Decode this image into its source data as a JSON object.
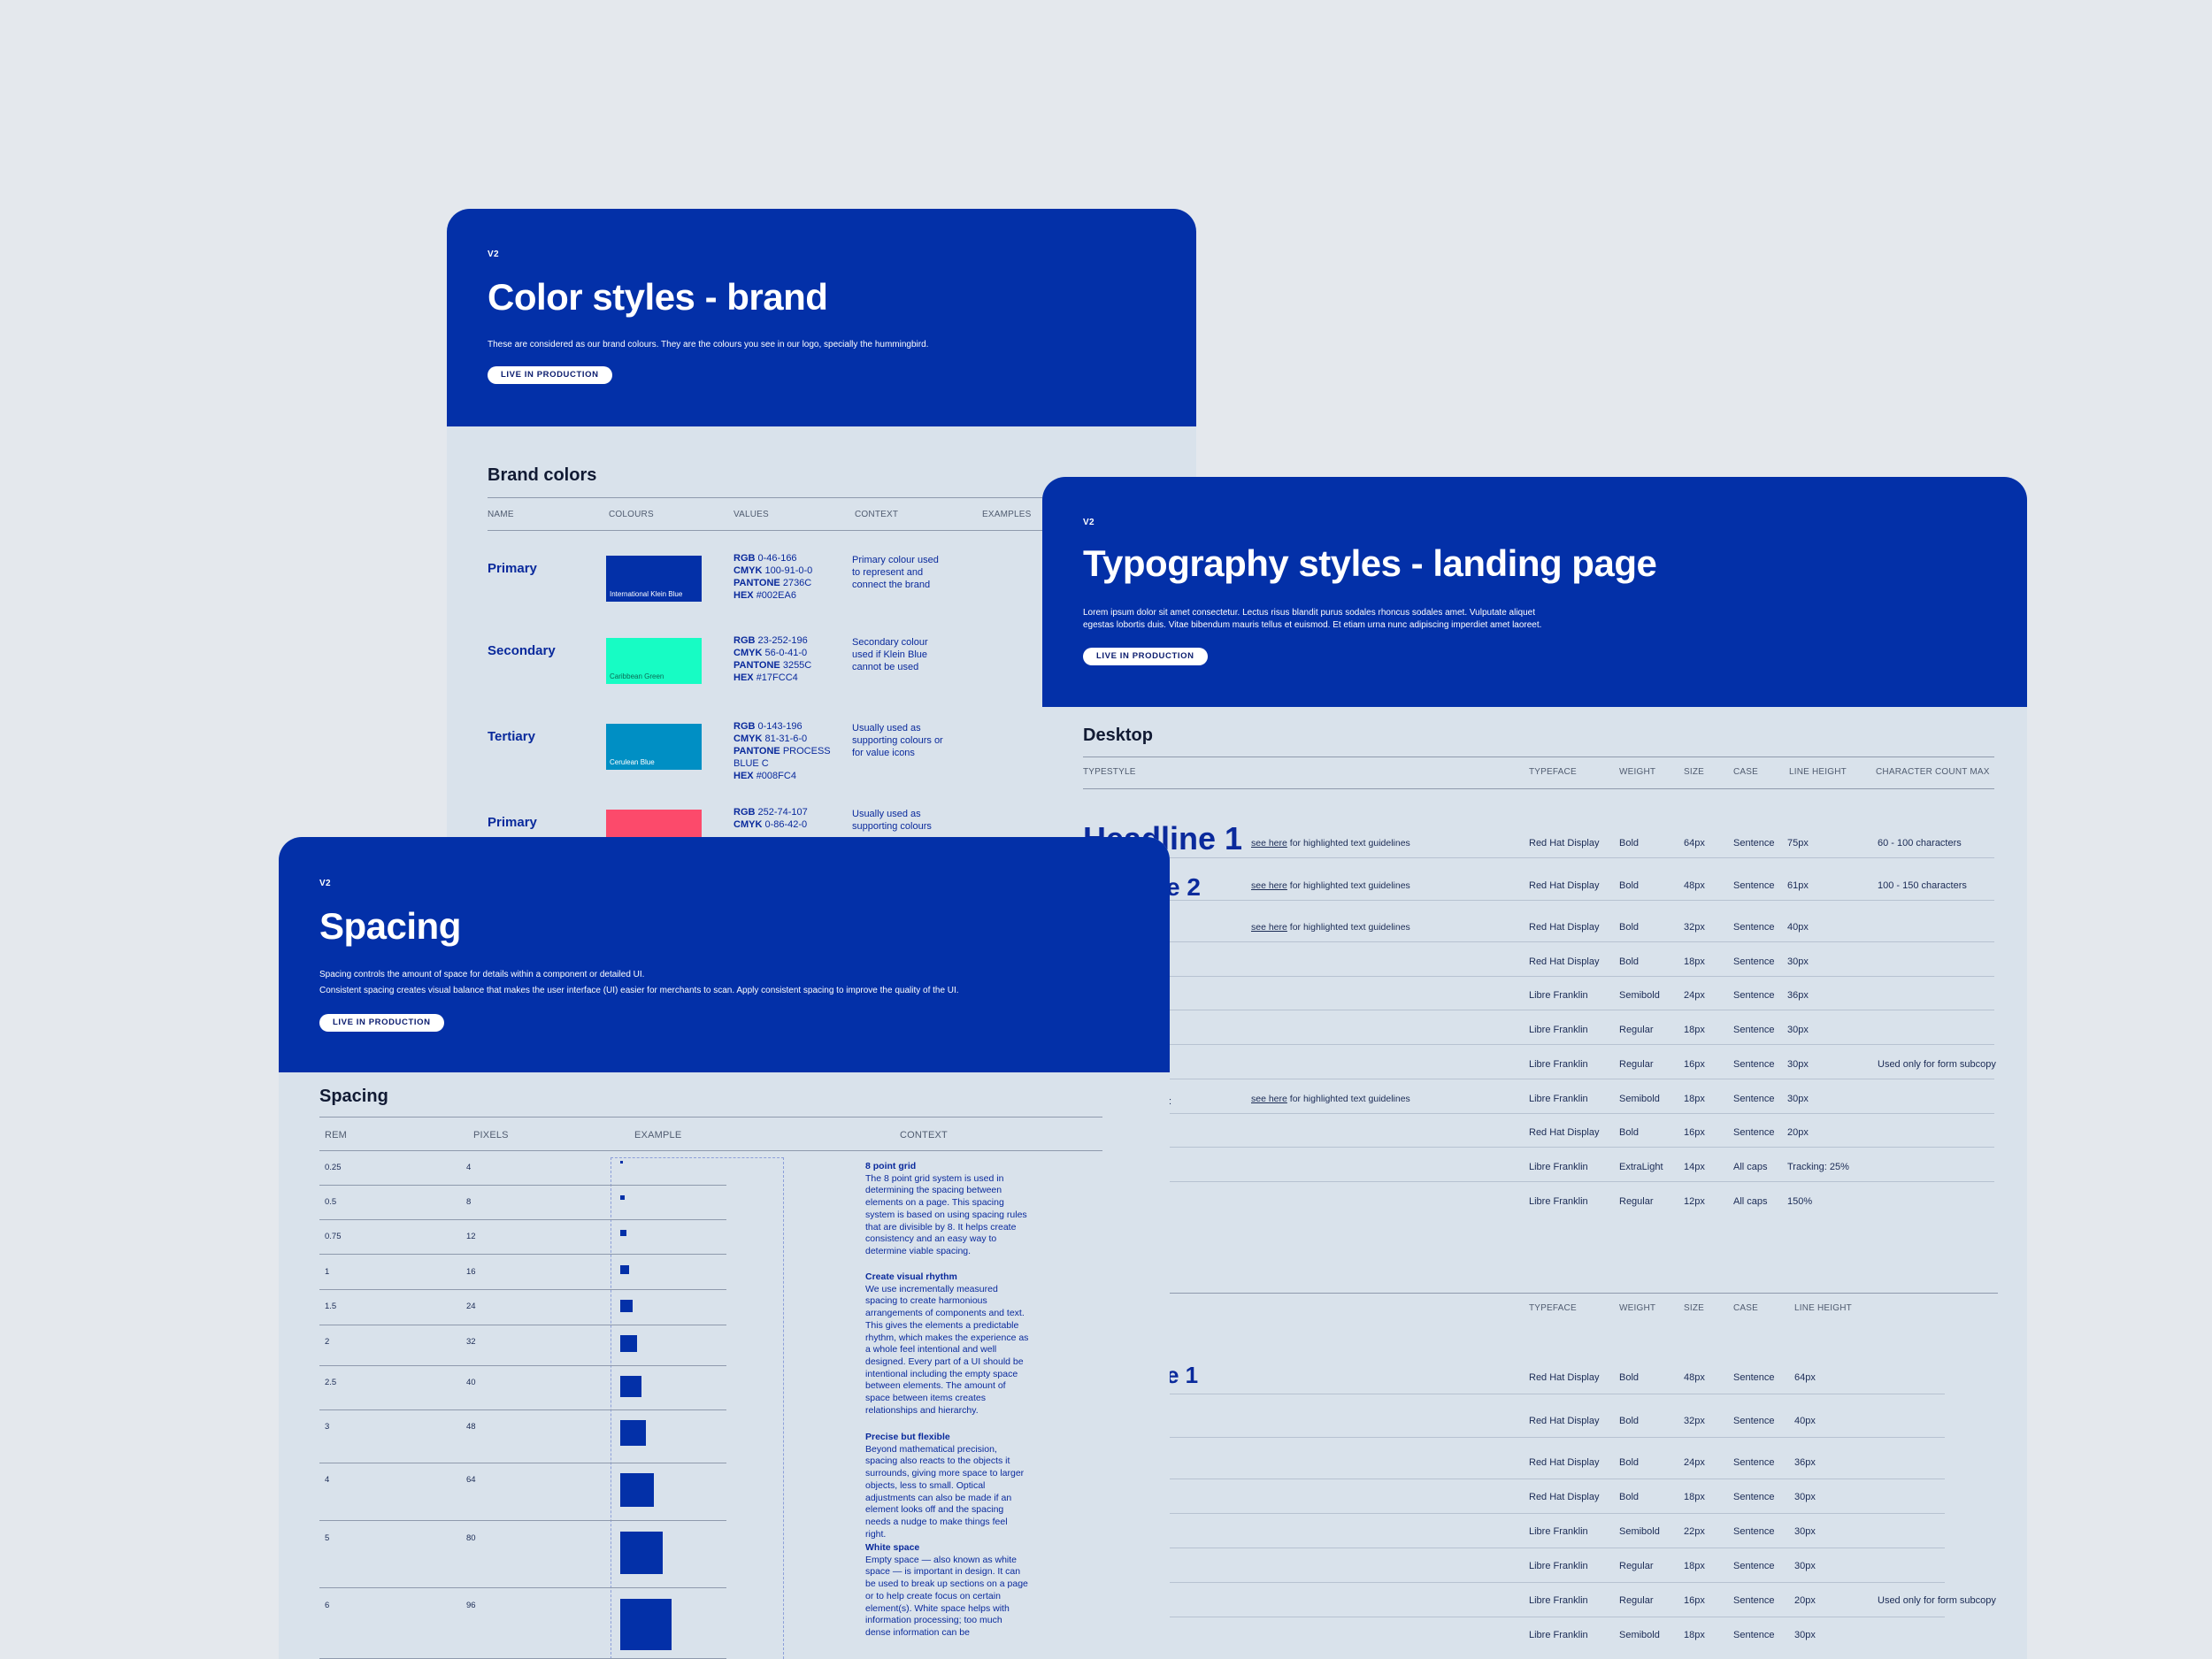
{
  "colors": {
    "background": "#e4e8ed",
    "hero": "#0330a8",
    "panel": "#d9e2eb",
    "text": "#0a2a9c"
  },
  "color_card": {
    "version": "V2",
    "title": "Color styles - brand",
    "description": "These are considered as our brand colours. They are the colours you see in our logo, specially the hummingbird.",
    "badge": "LIVE IN PRODUCTION",
    "section_title": "Brand colors",
    "headers": [
      "NAME",
      "COLOURS",
      "VALUES",
      "CONTEXT",
      "EXAMPLES"
    ],
    "rows": [
      {
        "name": "Primary",
        "swatch_label": "International Klein Blue",
        "swatch_color": "#0330a8",
        "values": [
          {
            "k": "RGB",
            "v": "0-46-166"
          },
          {
            "k": "CMYK",
            "v": "100-91-0-0"
          },
          {
            "k": "PANTONE",
            "v": "2736C"
          },
          {
            "k": "HEX",
            "v": "#002EA6"
          }
        ],
        "context": "Primary colour used to represent and connect the brand"
      },
      {
        "name": "Secondary",
        "swatch_label": "Caribbean Green",
        "swatch_color": "#17fcc4",
        "values": [
          {
            "k": "RGB",
            "v": "23-252-196"
          },
          {
            "k": "CMYK",
            "v": "56-0-41-0"
          },
          {
            "k": "PANTONE",
            "v": "3255C"
          },
          {
            "k": "HEX",
            "v": "#17FCC4"
          }
        ],
        "context": "Secondary colour used if Klein Blue cannot be used"
      },
      {
        "name": "Tertiary",
        "swatch_label": "Cerulean Blue",
        "swatch_color": "#008fc4",
        "values": [
          {
            "k": "RGB",
            "v": "0-143-196"
          },
          {
            "k": "CMYK",
            "v": "81-31-6-0"
          },
          {
            "k": "PANTONE",
            "v": "PROCESS BLUE C"
          },
          {
            "k": "HEX",
            "v": "#008FC4"
          }
        ],
        "context": "Usually used as supporting colours or for value icons"
      },
      {
        "name": "Primary",
        "swatch_label": "",
        "swatch_color": "#fc4a6b",
        "values": [
          {
            "k": "RGB",
            "v": "252-74-107"
          },
          {
            "k": "CMYK",
            "v": "0-86-42-0"
          }
        ],
        "context": "Usually used as supporting colours"
      }
    ]
  },
  "typo_card": {
    "version": "V2",
    "title": "Typography styles - landing page",
    "description_1": "Lorem ipsum dolor sit amet consectetur. Lectus risus blandit purus sodales rhoncus sodales amet. Vulputate aliquet",
    "description_2": "egestas lobortis duis. Vitae bibendum mauris tellus et euismod. Et etiam urna nunc adipiscing imperdiet amet laoreet.",
    "badge": "LIVE IN PRODUCTION",
    "section_title": "Desktop",
    "headers": [
      "TYPESTYLE",
      "TYPEFACE",
      "WEIGHT",
      "SIZE",
      "CASE",
      "LINE HEIGHT",
      "CHARACTER COUNT MAX"
    ],
    "headline1": "Headline 1",
    "headline2_partial": "e 2",
    "headline1b_partial": "e 1",
    "colon_fragment": ":",
    "link_text": "see here",
    "link_suffix": " for highlighted text guidelines",
    "desktop_rows": [
      {
        "typeface": "Red Hat Display",
        "weight": "Bold",
        "size": "64px",
        "case": "Sentence",
        "lh": "75px",
        "max": "60 - 100 characters",
        "link": true
      },
      {
        "typeface": "Red Hat Display",
        "weight": "Bold",
        "size": "48px",
        "case": "Sentence",
        "lh": "61px",
        "max": "100 - 150 characters",
        "link": true
      },
      {
        "typeface": "Red Hat Display",
        "weight": "Bold",
        "size": "32px",
        "case": "Sentence",
        "lh": "40px",
        "max": "",
        "link": true
      },
      {
        "typeface": "Red Hat Display",
        "weight": "Bold",
        "size": "18px",
        "case": "Sentence",
        "lh": "30px",
        "max": "",
        "link": false
      },
      {
        "typeface": "Libre Franklin",
        "weight": "Semibold",
        "size": "24px",
        "case": "Sentence",
        "lh": "36px",
        "max": "",
        "link": false
      },
      {
        "typeface": "Libre Franklin",
        "weight": "Regular",
        "size": "18px",
        "case": "Sentence",
        "lh": "30px",
        "max": "",
        "link": false
      },
      {
        "typeface": "Libre Franklin",
        "weight": "Regular",
        "size": "16px",
        "case": "Sentence",
        "lh": "30px",
        "max": "Used only for form subcopy",
        "link": false
      },
      {
        "typeface": "Libre Franklin",
        "weight": "Semibold",
        "size": "18px",
        "case": "Sentence",
        "lh": "30px",
        "max": "",
        "link": true
      },
      {
        "typeface": "Red Hat Display",
        "weight": "Bold",
        "size": "16px",
        "case": "Sentence",
        "lh": "20px",
        "max": "",
        "link": false
      },
      {
        "typeface": "Libre Franklin",
        "weight": "ExtraLight",
        "size": "14px",
        "case": "All caps",
        "lh": "Tracking: 25%",
        "max": "",
        "link": false
      },
      {
        "typeface": "Libre Franklin",
        "weight": "Regular",
        "size": "12px",
        "case": "All caps",
        "lh": "150%",
        "max": "",
        "link": false
      }
    ],
    "headers2": [
      "TYPEFACE",
      "WEIGHT",
      "SIZE",
      "CASE",
      "LINE HEIGHT"
    ],
    "rows2": [
      {
        "typeface": "Red Hat Display",
        "weight": "Bold",
        "size": "48px",
        "case": "Sentence",
        "lh": "64px",
        "max": ""
      },
      {
        "typeface": "Red Hat Display",
        "weight": "Bold",
        "size": "32px",
        "case": "Sentence",
        "lh": "40px",
        "max": ""
      },
      {
        "typeface": "Red Hat Display",
        "weight": "Bold",
        "size": "24px",
        "case": "Sentence",
        "lh": "36px",
        "max": ""
      },
      {
        "typeface": "Red Hat Display",
        "weight": "Bold",
        "size": "18px",
        "case": "Sentence",
        "lh": "30px",
        "max": ""
      },
      {
        "typeface": "Libre Franklin",
        "weight": "Semibold",
        "size": "22px",
        "case": "Sentence",
        "lh": "30px",
        "max": ""
      },
      {
        "typeface": "Libre Franklin",
        "weight": "Regular",
        "size": "18px",
        "case": "Sentence",
        "lh": "30px",
        "max": ""
      },
      {
        "typeface": "Libre Franklin",
        "weight": "Regular",
        "size": "16px",
        "case": "Sentence",
        "lh": "20px",
        "max": "Used only for form subcopy"
      },
      {
        "typeface": "Libre Franklin",
        "weight": "Semibold",
        "size": "18px",
        "case": "Sentence",
        "lh": "30px",
        "max": ""
      }
    ]
  },
  "spacing_card": {
    "version": "V2",
    "title": "Spacing",
    "description_1": "Spacing controls the amount of space for details within a component or detailed UI.",
    "description_2": "Consistent spacing creates visual balance that makes the user interface (UI) easier for merchants to scan. Apply consistent spacing to improve the quality of the UI.",
    "badge": "LIVE IN PRODUCTION",
    "section_title": "Spacing",
    "headers": [
      "REM",
      "PIXELS",
      "EXAMPLE",
      "CONTEXT"
    ],
    "rows": [
      {
        "rem": "0.25",
        "px": "4"
      },
      {
        "rem": "0.5",
        "px": "8"
      },
      {
        "rem": "0.75",
        "px": "12"
      },
      {
        "rem": "1",
        "px": "16"
      },
      {
        "rem": "1.5",
        "px": "24"
      },
      {
        "rem": "2",
        "px": "32"
      },
      {
        "rem": "2.5",
        "px": "40"
      },
      {
        "rem": "3",
        "px": "48"
      },
      {
        "rem": "4",
        "px": "64"
      },
      {
        "rem": "5",
        "px": "80"
      },
      {
        "rem": "6",
        "px": "96"
      }
    ],
    "context": [
      {
        "title": "8 point grid",
        "text": "The 8 point grid system is used in determining the spacing between elements on a page. This spacing system is based on using spacing rules that are divisible by 8. It helps create consistency and an easy way to determine viable spacing."
      },
      {
        "title": "Create visual rhythm",
        "text": "We use incrementally measured spacing to create harmonious arrangements of components and text. This gives the elements a predictable rhythm, which makes the experience as a whole feel intentional and well designed. Every part of a UI should be intentional including the empty space between elements. The amount of space between items creates relationships and hierarchy."
      },
      {
        "title": "Precise but flexible",
        "text": "Beyond mathematical precision, spacing also reacts to the objects it surrounds, giving more space to larger objects, less to small. Optical adjustments can also be made if an element looks off and the spacing needs a nudge to make things feel right."
      },
      {
        "title": "White space",
        "text": "Empty space — also known as white space — is important in design. It can be used to break up sections on a page or to help create focus on certain element(s). White space helps with information processing; too much dense information can be"
      }
    ]
  }
}
